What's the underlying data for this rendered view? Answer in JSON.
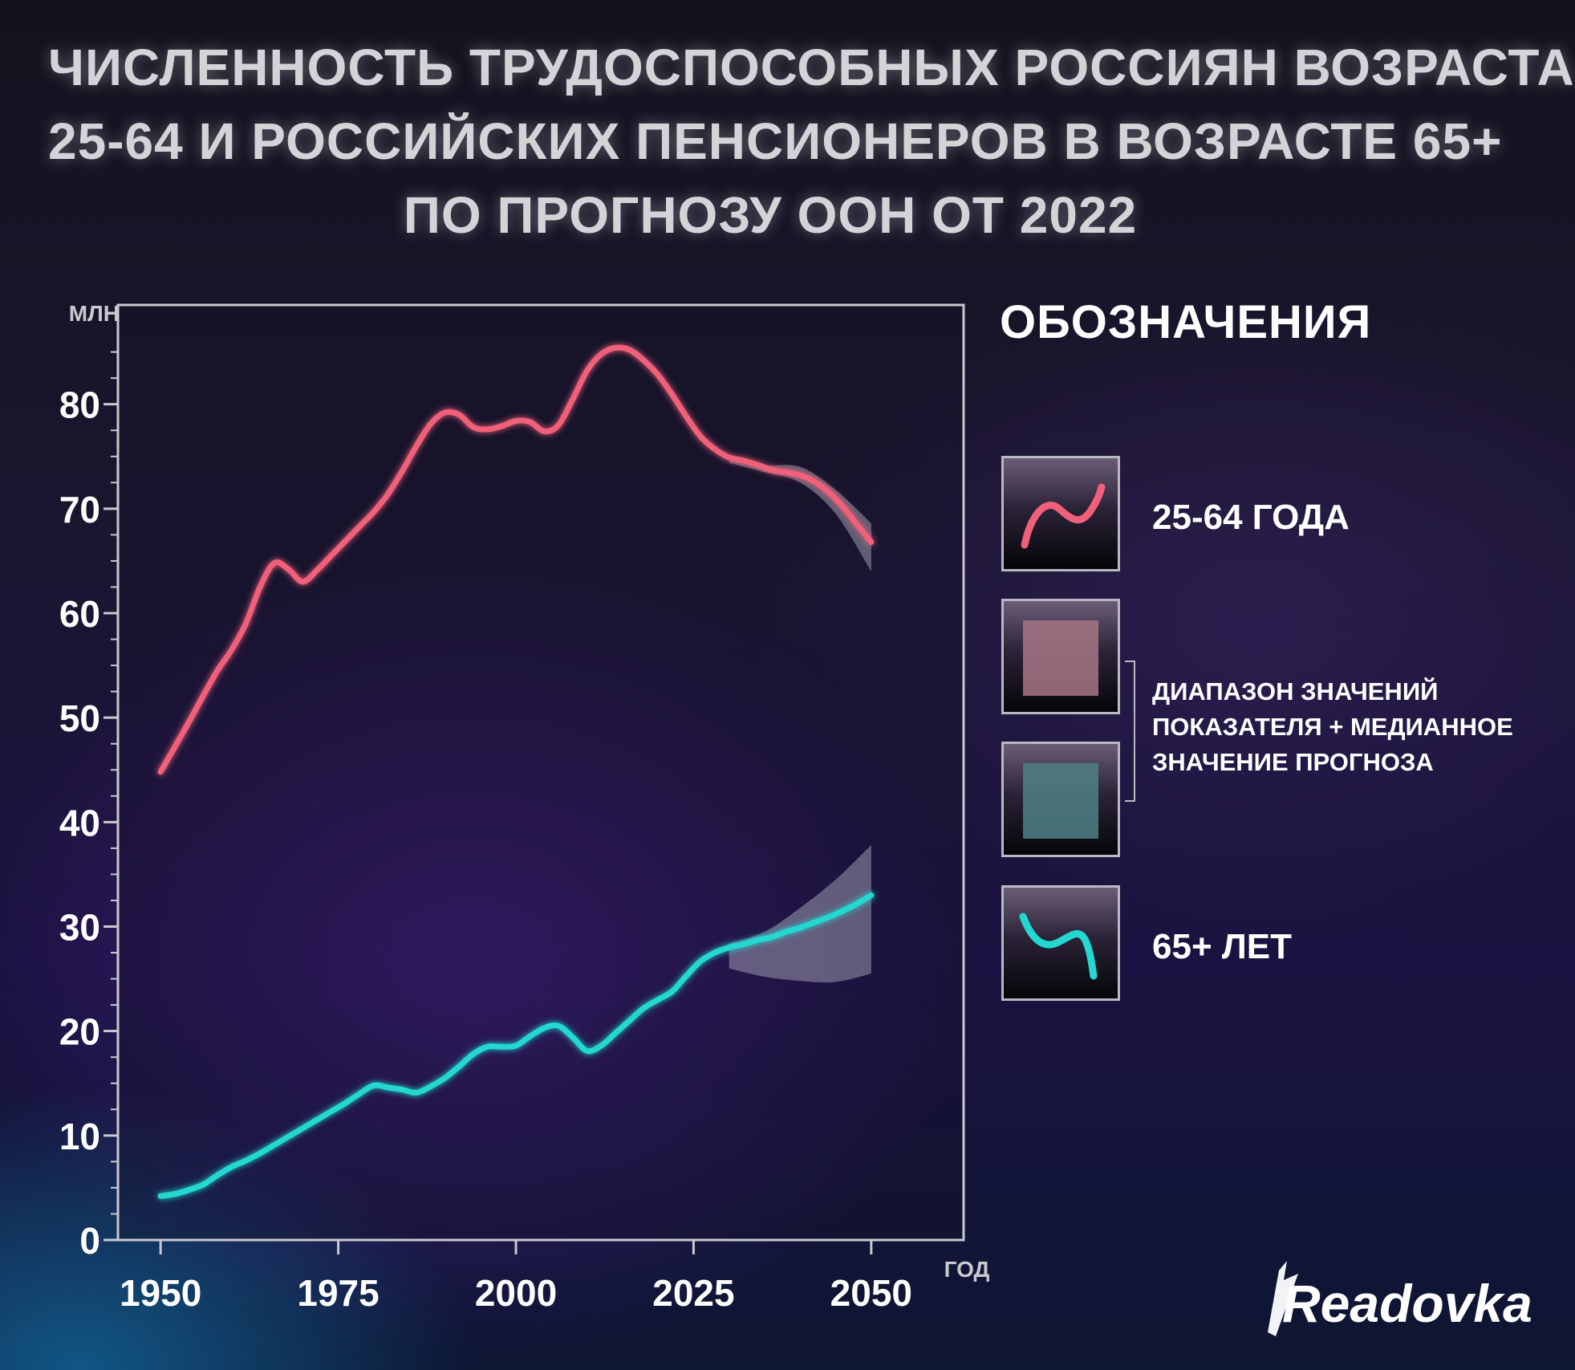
{
  "title": {
    "line1": "ЧИСЛЕННОСТЬ ТРУДОСПОСОБНЫХ РОССИЯН ВОЗРАСТА",
    "line2": "25-64 И РОССИЙСКИХ ПЕНСИОНЕРОВ В ВОЗРАСТЕ 65+",
    "line3": "ПО ПРОГНОЗУ ООН ОТ 2022"
  },
  "legend": {
    "title": "ОБОЗНАЧЕНИЯ",
    "item_working": "25-64 ГОДА",
    "item_range_note": [
      "ДИАПАЗОН ЗНАЧЕНИЙ",
      "ПОКАЗАТЕЛЯ + МЕДИАННОЕ",
      "ЗНАЧЕНИЕ ПРОГНОЗА"
    ],
    "item_elderly": "65+ ЛЕТ",
    "range_colors": {
      "working": "#a77585",
      "elderly": "#4f8086"
    }
  },
  "logo": {
    "text": "Readovka"
  },
  "colors": {
    "working_line": "#f0607a",
    "elderly_line": "#22d8d0",
    "band": "#b8b5c6",
    "axis": "#c9c9cf"
  },
  "chart_data": {
    "type": "line",
    "title": "ЧИСЛЕННОСТЬ ТРУДОСПОСОБНЫХ РОССИЯН ВОЗРАСТА 25-64 И РОССИЙСКИХ ПЕНСИОНЕРОВ В ВОЗРАСТЕ 65+ ПО ПРОГНОЗУ ООН ОТ 2022",
    "xlabel": "ГОД",
    "ylabel": "МЛН",
    "xlim": [
      1944,
      2063
    ],
    "ylim": [
      0,
      89.5
    ],
    "x_ticks": [
      1950,
      1975,
      2000,
      2025,
      2050
    ],
    "y_ticks": [
      0,
      10,
      20,
      30,
      40,
      50,
      60,
      70,
      80
    ],
    "grid": false,
    "series": [
      {
        "name": "25-64 ГОДА",
        "x": [
          1950,
          1952,
          1954,
          1956,
          1958,
          1960,
          1962,
          1964,
          1966,
          1968,
          1970,
          1972,
          1974,
          1976,
          1978,
          1980,
          1982,
          1984,
          1986,
          1988,
          1990,
          1992,
          1994,
          1996,
          1998,
          2000,
          2002,
          2004,
          2006,
          2008,
          2010,
          2012,
          2014,
          2016,
          2018,
          2020,
          2022,
          2024,
          2026,
          2028,
          2030,
          2032,
          2034,
          2036,
          2038,
          2040,
          2042,
          2044,
          2046,
          2048,
          2050
        ],
        "y": [
          44.8,
          47.2,
          49.6,
          52.1,
          54.5,
          56.5,
          59.0,
          62.5,
          64.8,
          64.2,
          63.0,
          64.1,
          65.5,
          66.9,
          68.3,
          69.7,
          71.4,
          73.6,
          76.0,
          78.1,
          79.2,
          79.0,
          77.8,
          77.6,
          77.9,
          78.4,
          78.3,
          77.4,
          78.0,
          80.5,
          83.2,
          84.8,
          85.4,
          85.2,
          84.2,
          82.8,
          80.9,
          78.8,
          76.9,
          75.7,
          74.9,
          74.6,
          74.2,
          73.7,
          73.5,
          73.2,
          72.6,
          71.6,
          70.2,
          68.5,
          66.8
        ]
      },
      {
        "name": "65+ ЛЕТ",
        "x": [
          1950,
          1952,
          1954,
          1956,
          1958,
          1960,
          1962,
          1964,
          1966,
          1968,
          1970,
          1972,
          1974,
          1976,
          1978,
          1980,
          1982,
          1984,
          1986,
          1988,
          1990,
          1992,
          1994,
          1996,
          1998,
          2000,
          2002,
          2004,
          2006,
          2008,
          2010,
          2012,
          2014,
          2016,
          2018,
          2020,
          2022,
          2024,
          2026,
          2028,
          2030,
          2032,
          2034,
          2036,
          2038,
          2040,
          2042,
          2044,
          2046,
          2048,
          2050
        ],
        "y": [
          4.2,
          4.4,
          4.8,
          5.3,
          6.2,
          7.0,
          7.6,
          8.3,
          9.1,
          9.9,
          10.7,
          11.5,
          12.3,
          13.1,
          14.0,
          14.8,
          14.6,
          14.4,
          14.1,
          14.7,
          15.5,
          16.6,
          17.8,
          18.5,
          18.5,
          18.6,
          19.5,
          20.3,
          20.5,
          19.4,
          18.1,
          18.6,
          19.8,
          21.0,
          22.2,
          23.0,
          23.8,
          25.3,
          26.7,
          27.5,
          28.0,
          28.3,
          28.7,
          29.0,
          29.5,
          29.9,
          30.4,
          30.9,
          31.5,
          32.2,
          33.0
        ]
      }
    ],
    "forecast_ranges": [
      {
        "name": "25-64 ГОДА",
        "x": [
          2030,
          2035,
          2040,
          2045,
          2050
        ],
        "lower": [
          74.4,
          73.5,
          72.5,
          69.5,
          64.0
        ],
        "upper": [
          75.2,
          74.2,
          74.0,
          71.8,
          68.6
        ]
      },
      {
        "name": "65+ ЛЕТ",
        "x": [
          2030,
          2035,
          2040,
          2045,
          2050
        ],
        "lower": [
          26.0,
          25.2,
          24.8,
          24.7,
          25.5
        ],
        "upper": [
          28.4,
          29.5,
          31.8,
          34.5,
          37.8
        ]
      }
    ]
  }
}
